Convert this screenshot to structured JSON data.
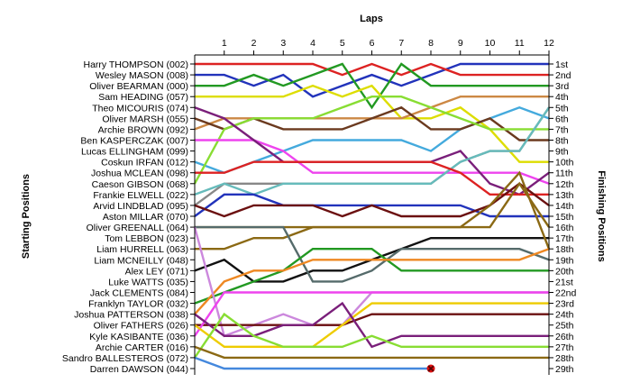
{
  "chart_data": {
    "type": "line",
    "title": "Laps",
    "ylabel_left": "Starting Positions",
    "ylabel_right": "Finishing Positions",
    "x": [
      0,
      1,
      2,
      3,
      4,
      5,
      6,
      7,
      8,
      9,
      10,
      11,
      12
    ],
    "xticks": [
      "1",
      "2",
      "3",
      "4",
      "5",
      "6",
      "7",
      "8",
      "9",
      "10",
      "11",
      "12"
    ],
    "grid": false,
    "drivers": [
      "Harry THOMPSON (002)",
      "Wesley MASON (008)",
      "Oliver BEARMAN (000)",
      "Sam HEADING (057)",
      "Theo MICOURIS (074)",
      "Oliver MARSH (055)",
      "Archie BROWN (092)",
      "Ben KASPERCZAK (007)",
      "Lucas ELLINGHAM (099)",
      "Coskun IRFAN (012)",
      "Joshua MCLEAN (098)",
      "Caeson GIBSON (068)",
      "Frankie ELWELL (022)",
      "Arvid LINDBLAD (095)",
      "Aston MILLAR (070)",
      "Oliver GREENALL (064)",
      "Tom LEBBON (023)",
      "Liam HURRELL (063)",
      "Liam MCNEILLY (048)",
      "Alex LEY (071)",
      "Luke WATTS (035)",
      "Jack CLEMENTS (084)",
      "Franklyn TAYLOR (032)",
      "Joshua PATTERSON (038)",
      "Oliver FATHERS (026)",
      "Kyle KASIBANTE (036)",
      "Archie CARTER (016)",
      "Sandro BALLESTEROS (072)",
      "Darren DAWSON (044)"
    ],
    "finishing_labels": [
      "1st",
      "2nd",
      "3rd",
      "4th",
      "5th",
      "6th",
      "7th",
      "8th",
      "9th",
      "10th",
      "11th",
      "12th",
      "13th",
      "14th",
      "15th",
      "16th",
      "17th",
      "18th",
      "19th",
      "20th",
      "21st",
      "22nd",
      "23rd",
      "24th",
      "25th",
      "26th",
      "27th",
      "28th",
      "29th"
    ],
    "series": [
      {
        "color": "#2233bb",
        "positions": [
          2,
          2,
          3,
          2,
          4,
          3,
          2,
          3,
          2,
          1,
          1,
          1,
          1
        ]
      },
      {
        "color": "#dd2222",
        "positions": [
          1,
          1,
          1,
          1,
          1,
          2,
          1,
          2,
          1,
          2,
          2,
          2,
          2
        ]
      },
      {
        "color": "#229922",
        "positions": [
          3,
          3,
          2,
          3,
          2,
          1,
          5,
          1,
          3,
          3,
          3,
          3,
          3
        ]
      },
      {
        "color": "#dddd00",
        "positions": [
          4,
          4,
          4,
          4,
          3,
          4,
          3,
          6,
          6,
          5,
          7,
          10,
          10
        ]
      },
      {
        "color": "#cc8844",
        "positions": [
          7,
          6,
          6,
          6,
          6,
          6,
          6,
          6,
          5,
          4,
          4,
          4,
          4
        ]
      },
      {
        "color": "#888888",
        "positions": [
          14,
          12,
          12,
          12,
          12,
          12,
          12,
          12,
          12,
          10,
          9,
          9,
          5
        ]
      },
      {
        "color": "#44aadd",
        "positions": [
          10,
          11,
          10,
          9,
          8,
          8,
          8,
          8,
          9,
          7,
          6,
          5,
          6
        ]
      },
      {
        "color": "#6b3a1f",
        "positions": [
          6,
          7,
          6,
          7,
          7,
          7,
          6,
          5,
          7,
          7,
          6,
          8,
          8
        ]
      },
      {
        "color": "#88dd33",
        "positions": [
          12,
          7,
          6,
          6,
          6,
          5,
          4,
          4,
          5,
          6,
          7,
          7,
          7
        ]
      },
      {
        "color": "#ee44ee",
        "positions": [
          8,
          8,
          8,
          9,
          11,
          11,
          11,
          11,
          11,
          11,
          11,
          11,
          12
        ]
      },
      {
        "color": "#7a1f7a",
        "positions": [
          5,
          6,
          8,
          10,
          10,
          10,
          10,
          10,
          10,
          9,
          12,
          13,
          11
        ]
      },
      {
        "color": "#66bbbb",
        "positions": [
          13,
          12,
          13,
          12,
          12,
          12,
          12,
          12,
          12,
          10,
          9,
          9,
          5
        ]
      },
      {
        "color": "#dd2222",
        "positions": [
          11,
          11,
          10,
          10,
          10,
          10,
          10,
          10,
          10,
          11,
          13,
          13,
          13
        ]
      },
      {
        "color": "#2233bb",
        "positions": [
          15,
          13,
          13,
          14,
          14,
          14,
          14,
          14,
          14,
          14,
          15,
          15,
          15
        ]
      },
      {
        "color": "#6b1010",
        "positions": [
          14,
          15,
          14,
          14,
          14,
          15,
          14,
          15,
          15,
          15,
          14,
          12,
          14
        ]
      },
      {
        "color": "#8b6914",
        "positions": [
          16,
          16,
          16,
          16,
          16,
          16,
          16,
          16,
          16,
          16,
          16,
          12,
          16
        ]
      },
      {
        "color": "#111111",
        "positions": [
          20,
          19,
          21,
          21,
          20,
          20,
          19,
          18,
          17,
          17,
          17,
          17,
          17
        ]
      },
      {
        "color": "#8b6914",
        "positions": [
          18,
          18,
          17,
          17,
          16,
          16,
          16,
          16,
          16,
          16,
          14,
          11,
          18
        ]
      },
      {
        "color": "#556b6b",
        "positions": [
          16,
          16,
          16,
          16,
          21,
          21,
          20,
          18,
          18,
          18,
          18,
          18,
          19
        ]
      },
      {
        "color": "#229922",
        "positions": [
          23,
          22,
          21,
          20,
          18,
          18,
          18,
          20,
          20,
          20,
          20,
          20,
          20
        ]
      },
      {
        "color": "#ee8822",
        "positions": [
          24,
          21,
          20,
          20,
          19,
          19,
          19,
          19,
          19,
          19,
          19,
          19,
          18
        ]
      },
      {
        "color": "#cc88dd",
        "positions": [
          16,
          26,
          25,
          24,
          25,
          25,
          22,
          22,
          22,
          22,
          22,
          22,
          22
        ]
      },
      {
        "color": "#6b1010",
        "positions": [
          25,
          25,
          25,
          25,
          25,
          25,
          24,
          24,
          24,
          24,
          24,
          24,
          24
        ]
      },
      {
        "color": "#ee44ee",
        "positions": [
          26,
          22,
          22,
          22,
          22,
          22,
          22,
          22,
          22,
          22,
          22,
          22,
          22
        ]
      },
      {
        "color": "#eecc00",
        "positions": [
          25,
          27,
          27,
          27,
          27,
          25,
          23,
          23,
          23,
          23,
          23,
          23,
          23
        ]
      },
      {
        "color": "#7a1f7a",
        "positions": [
          24,
          26,
          26,
          25,
          25,
          23,
          27,
          26,
          26,
          26,
          26,
          26,
          26
        ]
      },
      {
        "color": "#88dd33",
        "positions": [
          28,
          24,
          26,
          27,
          27,
          27,
          26,
          27,
          27,
          27,
          27,
          27,
          27
        ]
      },
      {
        "color": "#8b6914",
        "positions": [
          27,
          28,
          28,
          28,
          28,
          28,
          28,
          28,
          28,
          28,
          28,
          28,
          28
        ]
      },
      {
        "color": "#4488dd",
        "positions": [
          28,
          29,
          29,
          29,
          29,
          29,
          29,
          29,
          29
        ],
        "retired_after_lap": 8
      }
    ]
  }
}
